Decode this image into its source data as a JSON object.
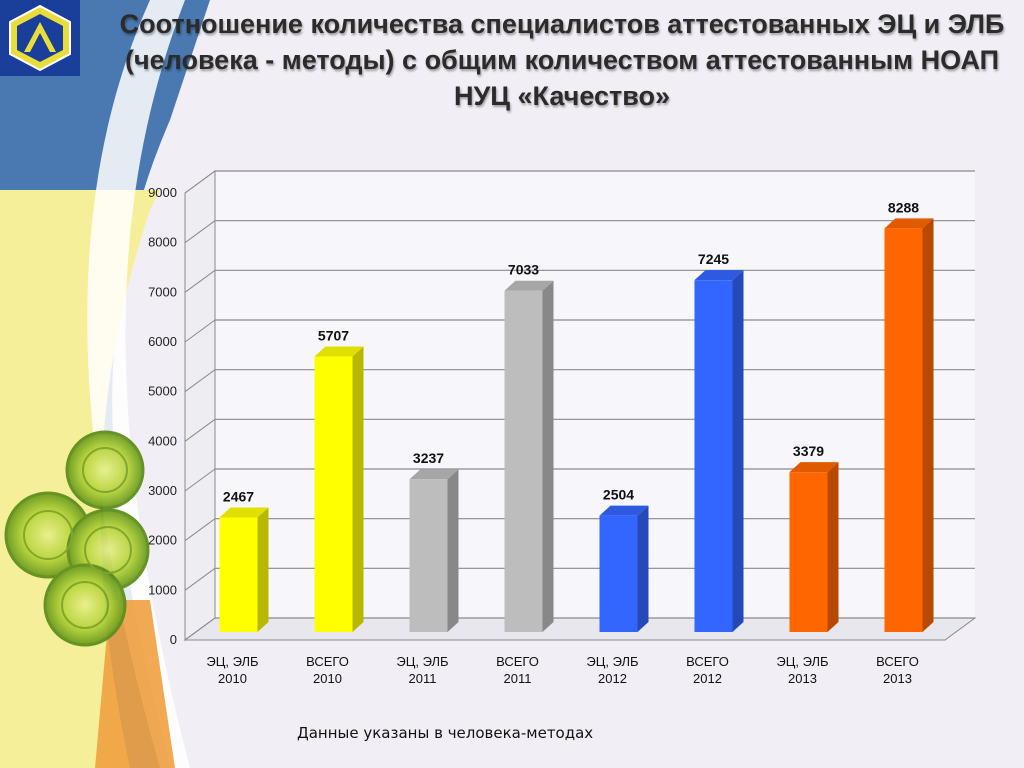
{
  "title": "Соотношение количества специалистов аттестованных ЭЦ и ЭЛБ (человека - методы) с общим количеством аттестованным НОАП НУЦ «Качество»",
  "footnote": "Данные указаны в  человека-методах",
  "colors": {
    "yellow": "#ffff00",
    "gray": "#bdbdbd",
    "blue": "#3366ff",
    "orange": "#ff6600",
    "background": "#f1eff5"
  },
  "chart_data": {
    "type": "bar",
    "categories": [
      [
        "ЭЦ, ЭЛБ",
        "2010"
      ],
      [
        "ВСЕГО",
        "2010"
      ],
      [
        "ЭЦ, ЭЛБ",
        "2011"
      ],
      [
        "ВСЕГО",
        "2011"
      ],
      [
        "ЭЦ, ЭЛБ",
        "2012"
      ],
      [
        "ВСЕГО",
        "2012"
      ],
      [
        "ЭЦ, ЭЛБ",
        "2013"
      ],
      [
        "ВСЕГО",
        "2013"
      ]
    ],
    "values": [
      2467,
      5707,
      3237,
      7033,
      2504,
      7245,
      3379,
      8288
    ],
    "bar_colors": [
      "yellow",
      "yellow",
      "gray",
      "gray",
      "blue",
      "blue",
      "orange",
      "orange"
    ],
    "y_ticks": [
      0,
      1000,
      2000,
      3000,
      4000,
      5000,
      6000,
      7000,
      8000,
      9000
    ],
    "ylim": [
      0,
      9000
    ],
    "grid": true,
    "legend": "none",
    "style": "3d"
  }
}
